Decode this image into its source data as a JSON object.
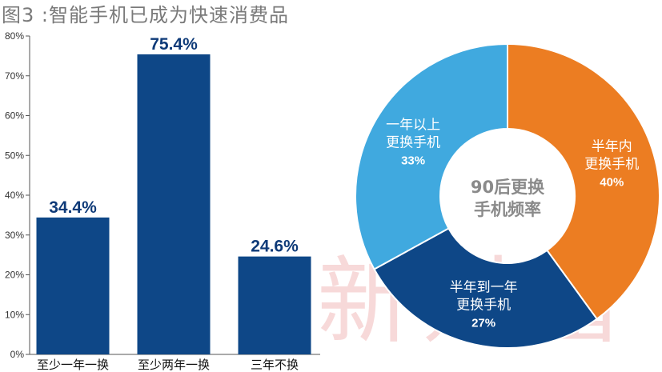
{
  "title": "图3 :智能手机已成为快速消费品",
  "watermark": "新财富",
  "chart_data": [
    {
      "type": "bar",
      "categories": [
        "至少一年一换",
        "至少两年一换",
        "三年不换"
      ],
      "values": [
        34.4,
        75.4,
        24.6
      ],
      "value_labels": [
        "34.4%",
        "75.4%",
        "24.6%"
      ],
      "ylim": [
        0,
        80
      ],
      "yticks": [
        "0%",
        "10%",
        "20%",
        "30%",
        "40%",
        "50%",
        "60%",
        "70%",
        "80%"
      ],
      "color": "#0e4787",
      "value_label_color": "#0e3a78"
    },
    {
      "type": "pie",
      "center_label": [
        "90后更换",
        "手机频率"
      ],
      "slices": [
        {
          "label": [
            "半年内",
            "更换手机"
          ],
          "value": 40,
          "pct_label": "40%",
          "color": "#ec7d22"
        },
        {
          "label": [
            "半年到一年",
            "更换手机"
          ],
          "value": 27,
          "pct_label": "27%",
          "color": "#0e4787"
        },
        {
          "label": [
            "一年以上",
            "更换手机"
          ],
          "value": 33,
          "pct_label": "33%",
          "color": "#40a9df"
        }
      ]
    }
  ]
}
